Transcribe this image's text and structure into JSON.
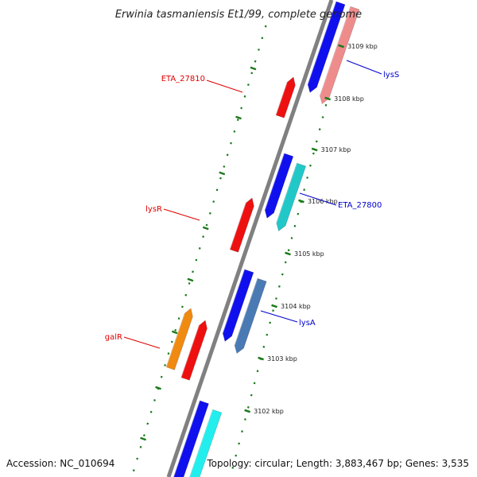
{
  "title": "Erwinia tasmaniensis Et1/99, complete genome",
  "footer": {
    "accession": "Accession: NC_010694",
    "summary": "Topology: circular; Length: 3,883,467 bp; Genes: 3,535"
  },
  "colors": {
    "backbone": "#808080",
    "ticks": "#1a7a1a",
    "label_reverse": "#e00000",
    "label_forward": "#0000cc",
    "gene_blue": "#1010ee",
    "gene_red": "#ee1010",
    "gene_pink": "#ee8c8c",
    "gene_teal": "#22c8c8",
    "gene_steel": "#4a7ab4",
    "gene_orange": "#f08a10",
    "gene_cyan": "#22eeee"
  },
  "ticks": [
    {
      "label": "3109 kbp"
    },
    {
      "label": "3108 kbp"
    },
    {
      "label": "3107 kbp"
    },
    {
      "label": "3106 kbp"
    },
    {
      "label": "3105 kbp"
    },
    {
      "label": "3104 kbp"
    },
    {
      "label": "3103 kbp"
    },
    {
      "label": "3102 kbp"
    }
  ],
  "gene_labels": [
    {
      "name": "lysS",
      "strand": "forward"
    },
    {
      "name": "ETA_27810",
      "strand": "reverse"
    },
    {
      "name": "ETA_27800",
      "strand": "forward"
    },
    {
      "name": "lysR",
      "strand": "reverse"
    },
    {
      "name": "lysA",
      "strand": "forward"
    },
    {
      "name": "galR",
      "strand": "reverse"
    }
  ]
}
